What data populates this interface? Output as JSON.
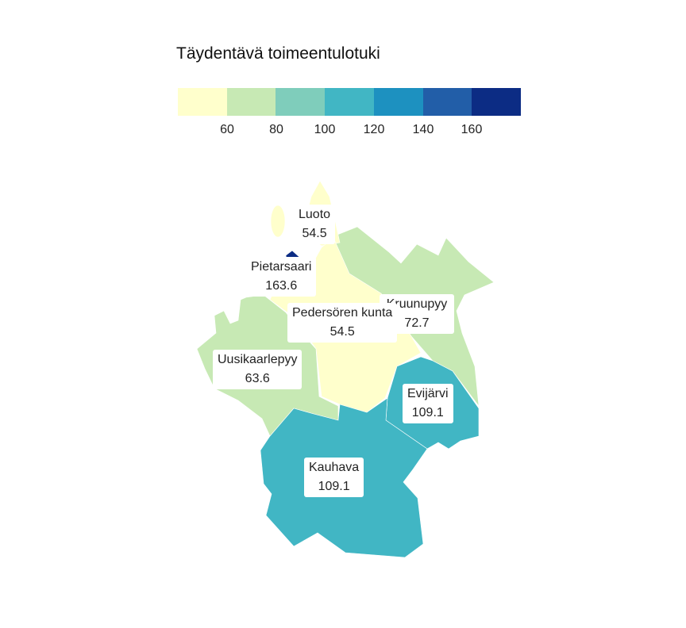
{
  "legend": {
    "title": "Täydentävä toimeentulotuki",
    "colors": [
      "#ffffcc",
      "#c7e9b4",
      "#7fcdbb",
      "#41b6c4",
      "#1d91c0",
      "#225ea8",
      "#0c2c84"
    ],
    "ticks": [
      "60",
      "80",
      "100",
      "120",
      "140",
      "160"
    ]
  },
  "municipalities": [
    {
      "id": "luoto",
      "name": "Luoto",
      "value": "54.5",
      "color": "#ffffcc"
    },
    {
      "id": "pietarsaari",
      "name": "Pietarsaari",
      "value": "163.6",
      "color": "#0c2c84"
    },
    {
      "id": "kruunupyy",
      "name": "Kruunupyy",
      "value": "72.7",
      "color": "#c7e9b4"
    },
    {
      "id": "pedersoren",
      "name": "Pedersören kunta",
      "value": "54.5",
      "color": "#ffffcc"
    },
    {
      "id": "uusikaarlepyy",
      "name": "Uusikaarlepyy",
      "value": "63.6",
      "color": "#c7e9b4"
    },
    {
      "id": "evijarvi",
      "name": "Evijärvi",
      "value": "109.1",
      "color": "#41b6c4"
    },
    {
      "id": "kauhava",
      "name": "Kauhava",
      "value": "109.1",
      "color": "#41b6c4"
    }
  ]
}
